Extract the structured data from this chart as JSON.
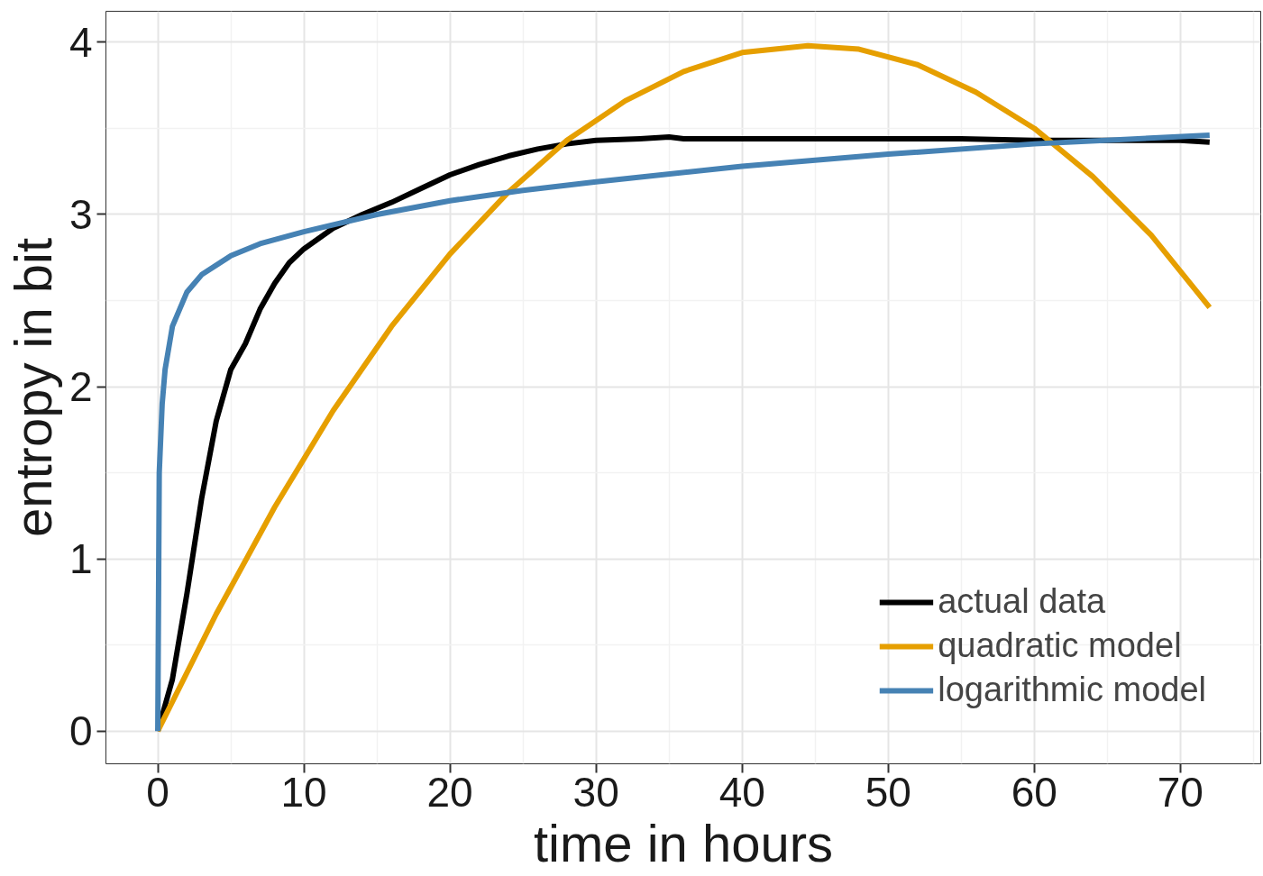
{
  "chart_data": {
    "type": "line",
    "xlabel": "time in hours",
    "ylabel": "entropy in bit",
    "xlim": [
      -3.55,
      75.5
    ],
    "ylim": [
      -0.19,
      4.18
    ],
    "xticks": [
      0,
      10,
      20,
      30,
      40,
      50,
      60,
      70
    ],
    "yticks": [
      0,
      1,
      2,
      3,
      4
    ],
    "grid": true,
    "legend": "bottom right",
    "line_style": "solid",
    "marker": "none",
    "series": [
      {
        "name": "actual data",
        "color": "#000000",
        "x": [
          0,
          1,
          2,
          3,
          4,
          5,
          6,
          7,
          8,
          9,
          10,
          12,
          14,
          16,
          18,
          20,
          22,
          24,
          26,
          28,
          30,
          33,
          35,
          36,
          40,
          45,
          50,
          55,
          60,
          65,
          70,
          72
        ],
        "values": [
          0,
          0.3,
          0.8,
          1.35,
          1.8,
          2.1,
          2.25,
          2.45,
          2.6,
          2.72,
          2.8,
          2.92,
          3.0,
          3.07,
          3.15,
          3.23,
          3.29,
          3.34,
          3.38,
          3.41,
          3.43,
          3.44,
          3.45,
          3.44,
          3.44,
          3.44,
          3.44,
          3.44,
          3.43,
          3.43,
          3.43,
          3.42
        ]
      },
      {
        "name": "quadratic model",
        "color": "#e69f00",
        "x": [
          0,
          4,
          8,
          12,
          16,
          20,
          24,
          28,
          32,
          36,
          40,
          44.5,
          48,
          52,
          56,
          60,
          64,
          68,
          72
        ],
        "values": [
          0,
          0.68,
          1.3,
          1.86,
          2.35,
          2.77,
          3.13,
          3.43,
          3.66,
          3.83,
          3.94,
          3.98,
          3.96,
          3.87,
          3.71,
          3.5,
          3.22,
          2.88,
          2.46
        ]
      },
      {
        "name": "logarithmic model",
        "color": "#4682b4",
        "x": [
          0,
          0.1,
          0.3,
          0.5,
          1,
          2,
          3,
          5,
          7,
          10,
          15,
          20,
          25,
          30,
          40,
          50,
          60,
          72
        ],
        "values": [
          0,
          1.5,
          1.9,
          2.1,
          2.35,
          2.55,
          2.65,
          2.76,
          2.83,
          2.9,
          3.0,
          3.08,
          3.14,
          3.19,
          3.28,
          3.35,
          3.41,
          3.46
        ]
      }
    ]
  }
}
